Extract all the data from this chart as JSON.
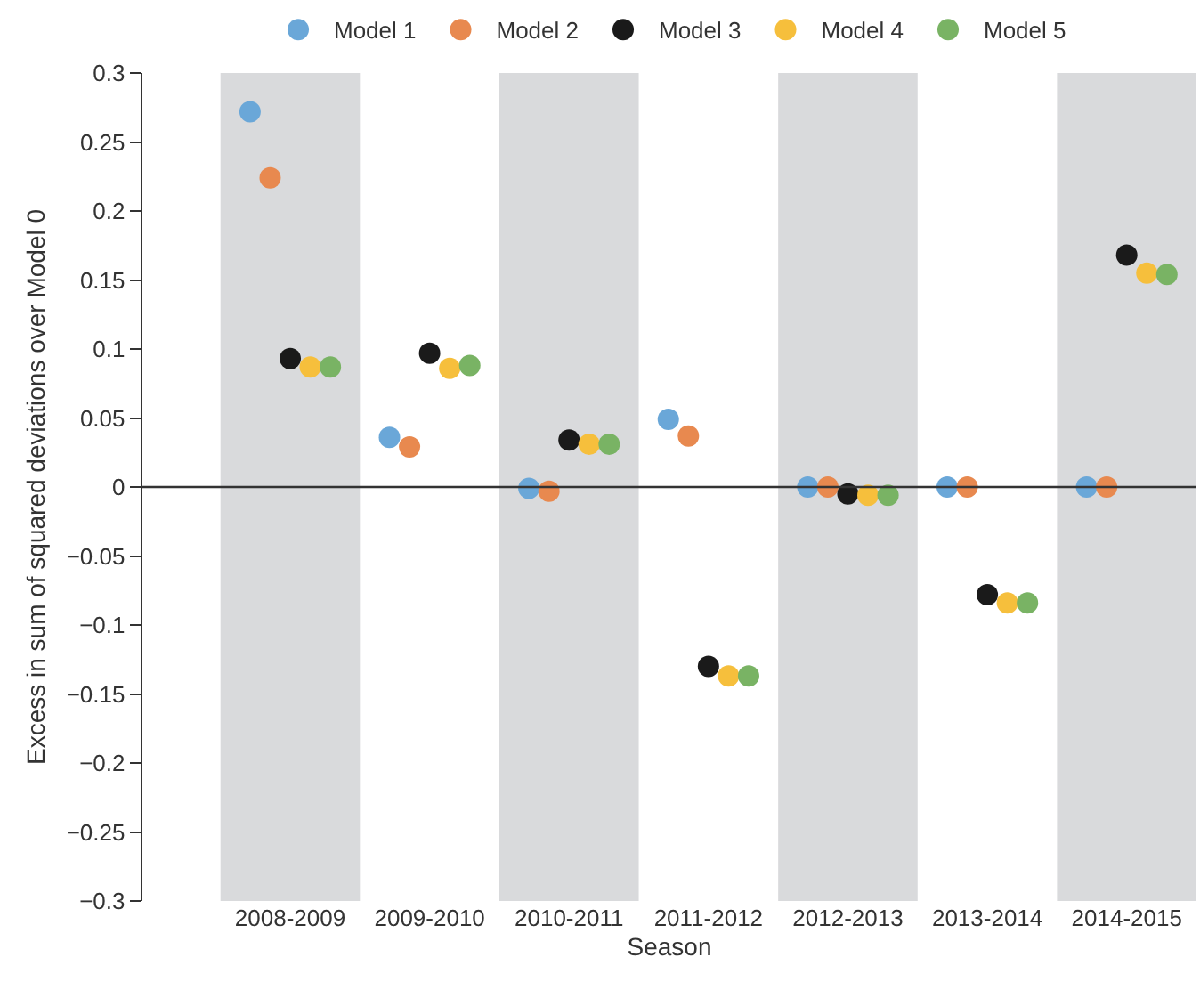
{
  "chart_data": {
    "type": "scatter",
    "xlabel": "Season",
    "ylabel": "Excess in sum of squared deviations over Model 0",
    "categories": [
      "2008-2009",
      "2009-2010",
      "2010-2011",
      "2011-2012",
      "2012-2013",
      "2013-2014",
      "2014-2015"
    ],
    "series": [
      {
        "name": "Model 1",
        "color": "#6aa7d8",
        "values": [
          0.272,
          0.036,
          -0.001,
          0.049,
          0.0,
          0.0,
          0.0
        ]
      },
      {
        "name": "Model 2",
        "color": "#e8894f",
        "values": [
          0.224,
          0.029,
          -0.003,
          0.037,
          0.0,
          0.0,
          0.0
        ]
      },
      {
        "name": "Model 3",
        "color": "#1a1a1a",
        "values": [
          0.093,
          0.097,
          0.034,
          -0.13,
          -0.005,
          -0.078,
          0.168
        ]
      },
      {
        "name": "Model 4",
        "color": "#f6bf3c",
        "values": [
          0.087,
          0.086,
          0.031,
          -0.137,
          -0.006,
          -0.084,
          0.155
        ]
      },
      {
        "name": "Model 5",
        "color": "#79b364",
        "values": [
          0.087,
          0.088,
          0.031,
          -0.137,
          -0.006,
          -0.084,
          0.154
        ]
      }
    ],
    "ylim": [
      -0.3,
      0.3
    ],
    "yticks": [
      {
        "value": -0.3,
        "label": "−0.3"
      },
      {
        "value": -0.25,
        "label": "−0.25"
      },
      {
        "value": -0.2,
        "label": "−0.2"
      },
      {
        "value": -0.15,
        "label": "−0.15"
      },
      {
        "value": -0.1,
        "label": "−0.1"
      },
      {
        "value": -0.05,
        "label": "−0.05"
      },
      0,
      0.05,
      0.1,
      0.15,
      0.2,
      0.25,
      0.3
    ],
    "ref_lines": [
      {
        "axis": "y",
        "value": 0,
        "color": "#333333"
      }
    ],
    "bands": [
      {
        "axis": "x",
        "from": "2008-2009",
        "to": "2008-2009",
        "color": "#d9dadc"
      },
      {
        "axis": "x",
        "from": "2010-2011",
        "to": "2010-2011",
        "color": "#d9dadc"
      },
      {
        "axis": "x",
        "from": "2012-2013",
        "to": "2012-2013",
        "color": "#d9dadc"
      },
      {
        "axis": "x",
        "from": "2014-2015",
        "to": "2014-2015",
        "color": "#d9dadc"
      }
    ],
    "grid": false,
    "legend": "top",
    "marker": "circle"
  }
}
